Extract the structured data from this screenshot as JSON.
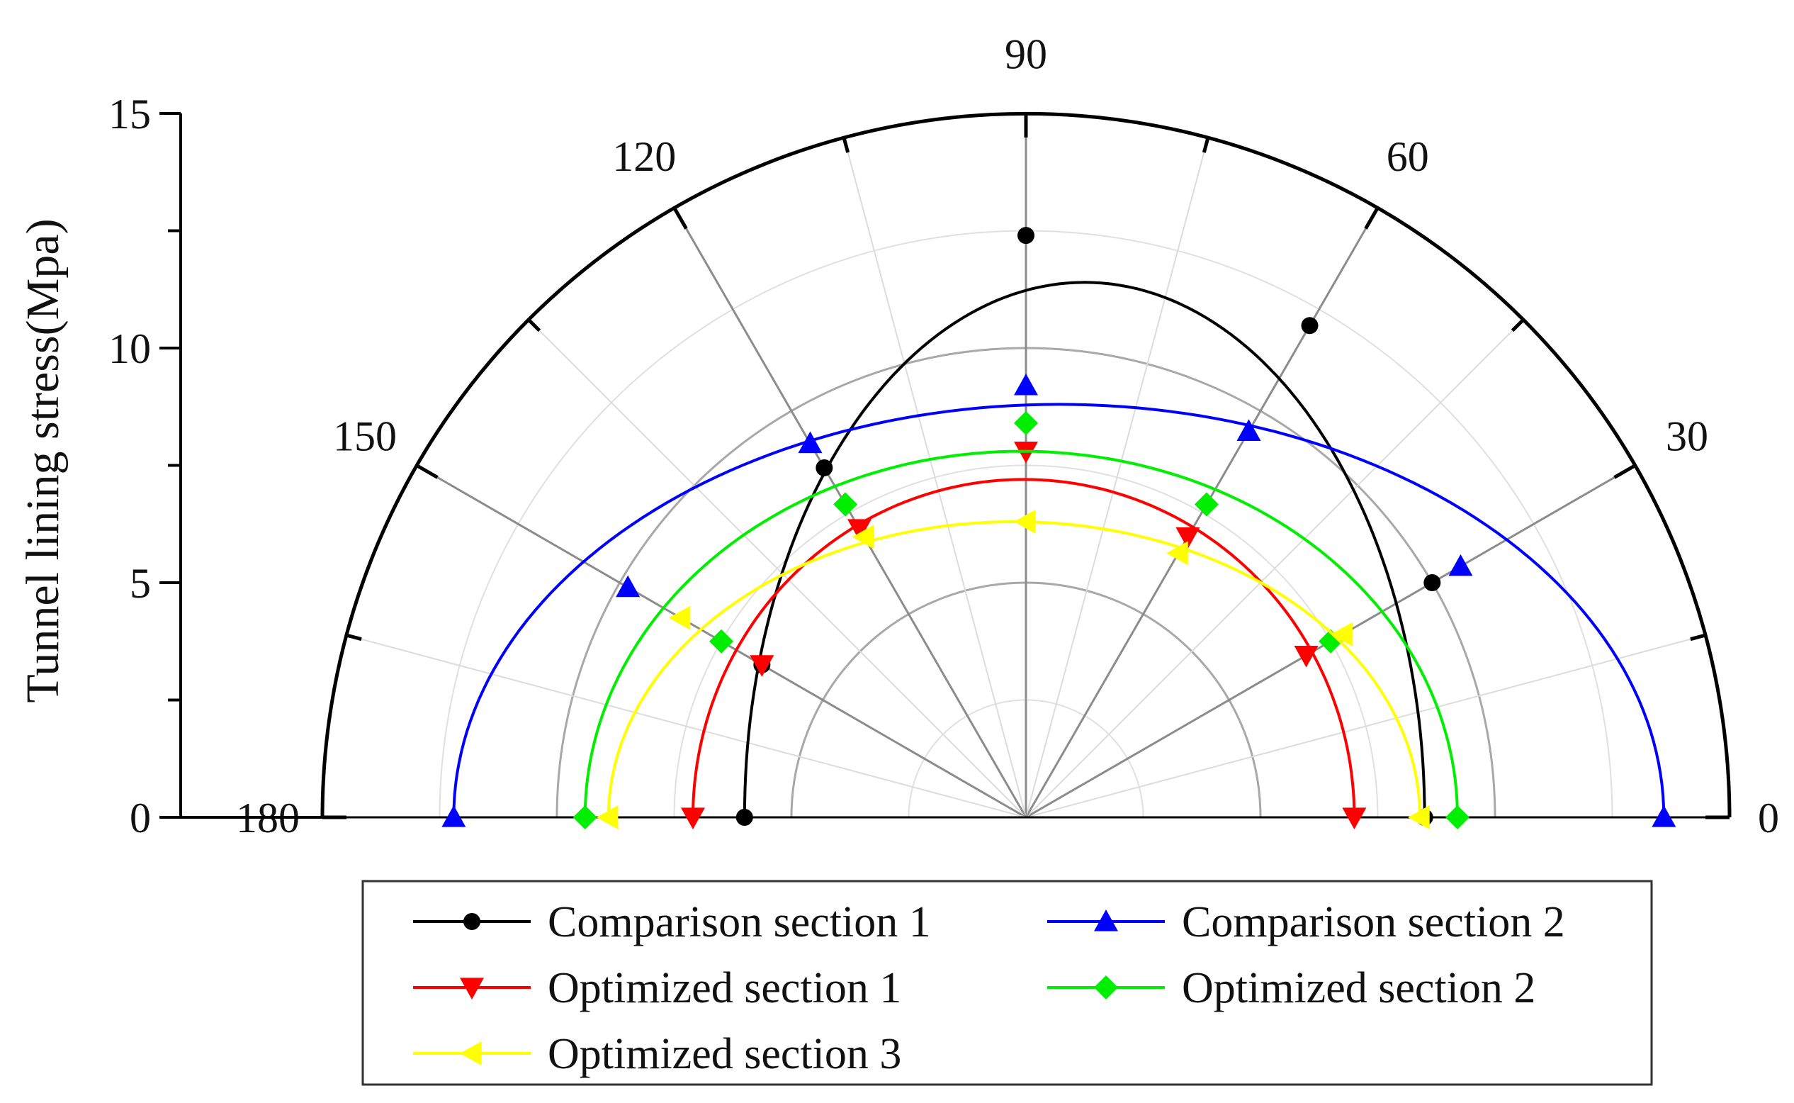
{
  "chart_data": {
    "type": "polar-line",
    "title": "",
    "ylabel": "Tunnel lining stress(Mpa)",
    "rlim": [
      0,
      15
    ],
    "r_ticks": [
      "0",
      "5",
      "10",
      "15"
    ],
    "theta_range_deg": [
      0,
      180
    ],
    "theta_ticks": [
      "0",
      "30",
      "60",
      "90",
      "120",
      "150",
      "180"
    ],
    "grid": true,
    "legend_position": "bottom",
    "series": [
      {
        "name": "Comparison section 1",
        "color": "#000000",
        "marker": "circle",
        "theta": [
          0,
          30,
          60,
          90,
          120,
          150,
          180
        ],
        "r": [
          8.5,
          10.0,
          12.1,
          12.4,
          8.6,
          6.5,
          6.0
        ],
        "fit": {
          "curve": "ellipse",
          "x_right": 8.5,
          "x_left": -6.0,
          "y_top": 11.4
        }
      },
      {
        "name": "Comparison section 2",
        "color": "#0000ff",
        "marker": "triangle-up",
        "theta": [
          0,
          30,
          60,
          90,
          120,
          150,
          180
        ],
        "r": [
          13.6,
          10.7,
          9.5,
          9.2,
          9.2,
          9.8,
          12.2
        ],
        "fit": {
          "curve": "ellipse",
          "x_right": 13.6,
          "x_left": -12.2,
          "y_top": 8.8
        }
      },
      {
        "name": "Optimized section 1",
        "color": "#ff0000",
        "marker": "triangle-down",
        "theta": [
          0,
          30,
          60,
          90,
          120,
          150,
          180
        ],
        "r": [
          7.0,
          6.9,
          6.9,
          7.8,
          7.1,
          6.5,
          7.1
        ],
        "fit": {
          "curve": "ellipse",
          "x_right": 7.0,
          "x_left": -7.1,
          "y_top": 7.2
        }
      },
      {
        "name": "Optimized section 2",
        "color": "#00ee00",
        "marker": "diamond",
        "theta": [
          0,
          30,
          60,
          90,
          120,
          150,
          180
        ],
        "r": [
          9.2,
          7.5,
          7.7,
          8.4,
          7.7,
          7.5,
          9.4
        ],
        "fit": {
          "curve": "ellipse",
          "x_right": 9.2,
          "x_left": -9.4,
          "y_top": 7.8
        }
      },
      {
        "name": "Optimized section 3",
        "color": "#ffff00",
        "marker": "triangle-left",
        "theta": [
          0,
          30,
          60,
          90,
          120,
          150,
          180
        ],
        "r": [
          8.4,
          7.8,
          6.5,
          6.3,
          6.9,
          8.5,
          8.9
        ],
        "fit": {
          "curve": "ellipse",
          "x_right": 8.4,
          "x_left": -8.9,
          "y_top": 6.3
        }
      }
    ]
  }
}
